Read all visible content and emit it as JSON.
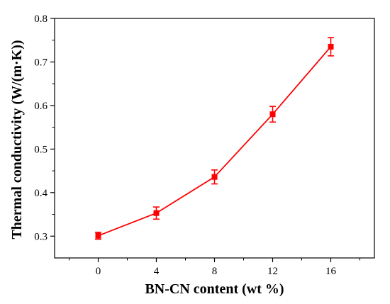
{
  "chart_data": {
    "type": "line",
    "title": "",
    "xlabel": "BN-CN content (wt %)",
    "ylabel": "Thermal conductivity (W/(m·K))",
    "xlim": [
      -3,
      19
    ],
    "ylim": [
      0.25,
      0.8
    ],
    "x_ticks": [
      0,
      4,
      8,
      12,
      16
    ],
    "y_ticks": [
      0.3,
      0.4,
      0.5,
      0.6,
      0.7,
      0.8
    ],
    "grid": false,
    "legend": "none",
    "series": [
      {
        "color": "#ff0000",
        "marker": "square",
        "x": [
          0,
          4,
          8,
          12,
          16
        ],
        "y": [
          0.301,
          0.353,
          0.436,
          0.58,
          0.735
        ],
        "error": [
          0.008,
          0.014,
          0.016,
          0.018,
          0.021
        ]
      }
    ]
  }
}
